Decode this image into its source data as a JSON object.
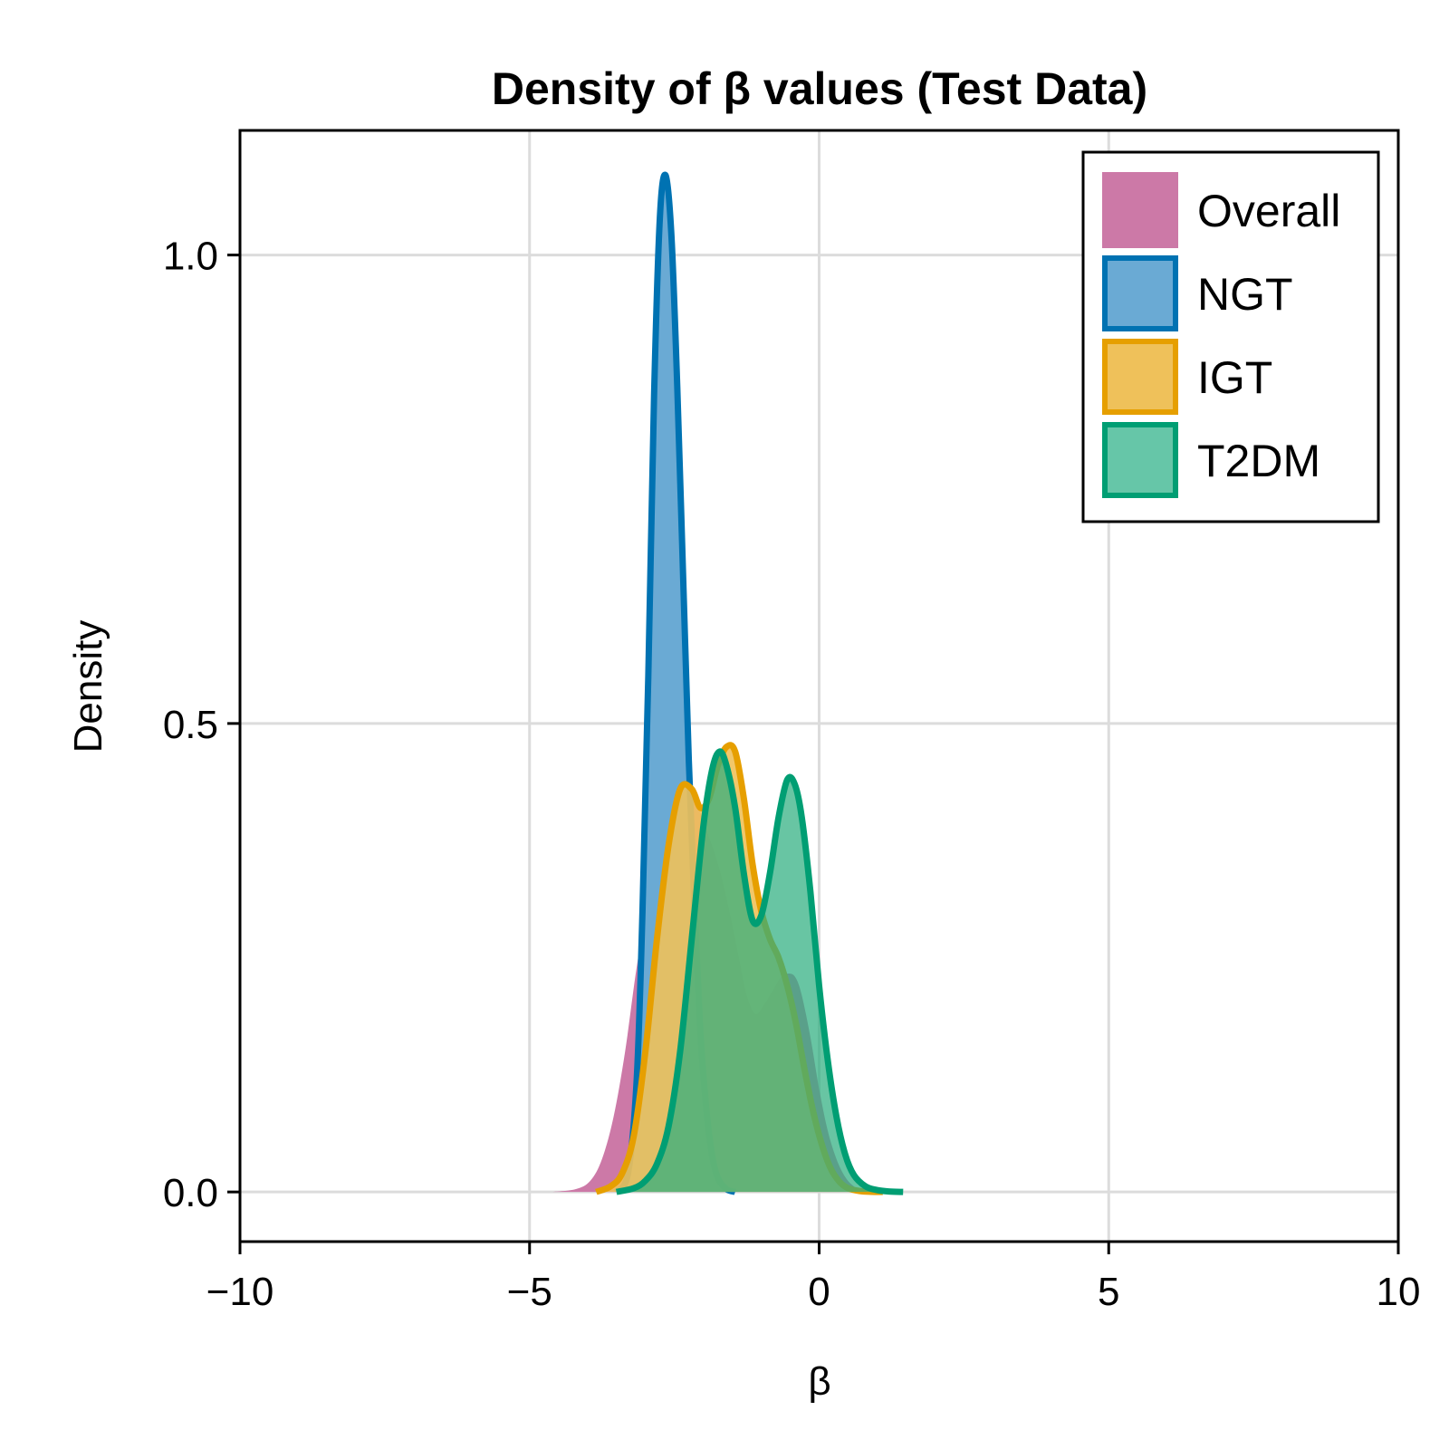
{
  "chart_data": {
    "type": "area",
    "title": "Density of β values (Test Data)",
    "xlabel": "β",
    "ylabel": "Density",
    "xlim": [
      -10,
      10
    ],
    "ylim": [
      -0.053,
      1.133
    ],
    "xticks": [
      -10,
      -5,
      0,
      5,
      10
    ],
    "xtick_labels": [
      "−10",
      "−5",
      "0",
      "5",
      "10"
    ],
    "yticks": [
      0.0,
      0.5,
      1.0
    ],
    "ytick_labels": [
      "0.0",
      "0.5",
      "1.0"
    ],
    "grid": true,
    "legend_position": "top-right",
    "series": [
      {
        "name": "Overall",
        "line_color": "#cc79a7",
        "fill_color": "#cc79a7",
        "fill_opacity": 1.0,
        "has_stroke": false,
        "x": [
          -4.6,
          -4.2,
          -3.95,
          -3.75,
          -3.55,
          -3.35,
          -3.15,
          -2.95,
          -2.75,
          -2.6,
          -2.45,
          -2.3,
          -2.2,
          -2.1,
          -2.0,
          -1.85,
          -1.7,
          -1.55,
          -1.4,
          -1.25,
          -1.1,
          -0.95,
          -0.8,
          -0.65,
          -0.5,
          -0.4,
          -0.3,
          -0.15,
          0.0,
          0.15,
          0.3,
          0.45,
          0.6,
          0.75,
          0.9,
          1.0
        ],
        "y": [
          0.0,
          0.003,
          0.012,
          0.035,
          0.08,
          0.15,
          0.24,
          0.31,
          0.37,
          0.4,
          0.425,
          0.433,
          0.43,
          0.415,
          0.395,
          0.37,
          0.34,
          0.3,
          0.255,
          0.21,
          0.19,
          0.2,
          0.215,
          0.23,
          0.233,
          0.228,
          0.21,
          0.165,
          0.11,
          0.065,
          0.035,
          0.016,
          0.006,
          0.002,
          0.0005,
          0.0
        ]
      },
      {
        "name": "NGT",
        "line_color": "#0072b2",
        "fill_color": "#6aaad4",
        "fill_opacity": 1.0,
        "has_stroke": true,
        "x": [
          -3.5,
          -3.3,
          -3.15,
          -3.05,
          -2.95,
          -2.85,
          -2.75,
          -2.65,
          -2.55,
          -2.45,
          -2.35,
          -2.25,
          -2.15,
          -2.05,
          -1.95,
          -1.85,
          -1.75,
          -1.6,
          -1.45
        ],
        "y": [
          0.0,
          0.02,
          0.12,
          0.3,
          0.55,
          0.85,
          1.04,
          1.085,
          1.02,
          0.86,
          0.66,
          0.46,
          0.3,
          0.17,
          0.09,
          0.04,
          0.015,
          0.003,
          0.0
        ]
      },
      {
        "name": "IGT",
        "line_color": "#e69f00",
        "fill_color": "#efc15a",
        "fill_opacity": 0.9,
        "has_stroke": true,
        "x": [
          -3.85,
          -3.6,
          -3.4,
          -3.2,
          -3.0,
          -2.8,
          -2.6,
          -2.4,
          -2.2,
          -2.05,
          -1.9,
          -1.75,
          -1.6,
          -1.45,
          -1.3,
          -1.15,
          -1.0,
          -0.85,
          -0.7,
          -0.55,
          -0.4,
          -0.25,
          -0.1,
          0.05,
          0.2,
          0.35,
          0.5,
          0.7,
          0.9,
          1.1
        ],
        "y": [
          0.0,
          0.006,
          0.02,
          0.06,
          0.15,
          0.27,
          0.37,
          0.43,
          0.43,
          0.41,
          0.42,
          0.455,
          0.475,
          0.47,
          0.42,
          0.35,
          0.3,
          0.27,
          0.25,
          0.22,
          0.18,
          0.13,
          0.085,
          0.05,
          0.025,
          0.011,
          0.004,
          0.001,
          0.0002,
          0.0
        ]
      },
      {
        "name": "T2DM",
        "line_color": "#009e73",
        "fill_color": "#2eae80",
        "fill_opacity": 0.72,
        "has_stroke": true,
        "x": [
          -3.5,
          -3.2,
          -3.0,
          -2.8,
          -2.6,
          -2.4,
          -2.2,
          -2.0,
          -1.85,
          -1.72,
          -1.6,
          -1.45,
          -1.3,
          -1.15,
          -1.0,
          -0.85,
          -0.7,
          -0.55,
          -0.42,
          -0.3,
          -0.15,
          0.0,
          0.15,
          0.3,
          0.45,
          0.6,
          0.8,
          1.0,
          1.2,
          1.45
        ],
        "y": [
          0.0,
          0.004,
          0.012,
          0.03,
          0.07,
          0.15,
          0.27,
          0.39,
          0.45,
          0.47,
          0.455,
          0.41,
          0.34,
          0.29,
          0.295,
          0.34,
          0.4,
          0.44,
          0.435,
          0.4,
          0.32,
          0.22,
          0.14,
          0.08,
          0.04,
          0.018,
          0.006,
          0.002,
          0.0005,
          0.0
        ]
      }
    ],
    "legend": [
      {
        "label": "Overall",
        "fill_color": "#cc79a7",
        "line_color": "#cc79a7",
        "has_stroke": false
      },
      {
        "label": "NGT",
        "fill_color": "#6aaad4",
        "line_color": "#0072b2",
        "has_stroke": true
      },
      {
        "label": "IGT",
        "fill_color": "#efc15a",
        "line_color": "#e69f00",
        "has_stroke": true
      },
      {
        "label": "T2DM",
        "fill_color": "#66c6a8",
        "line_color": "#009e73",
        "has_stroke": true
      }
    ]
  }
}
